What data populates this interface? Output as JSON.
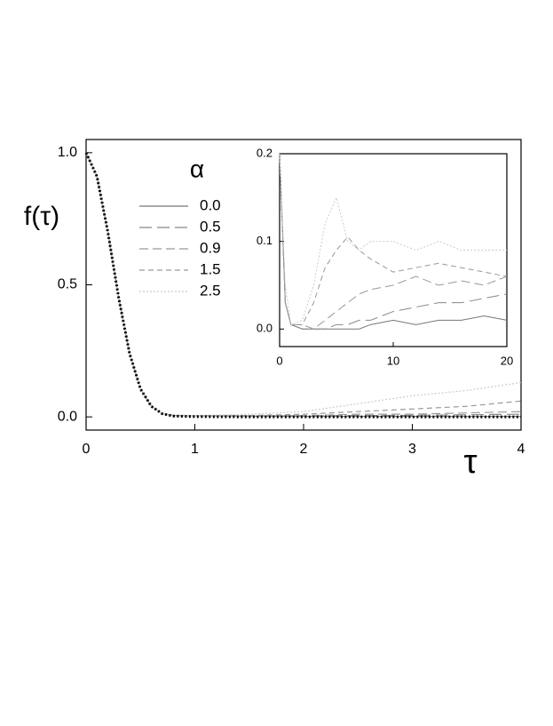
{
  "chart_data": [
    {
      "type": "line",
      "xlabel": "τ",
      "ylabel": "f(τ)",
      "legend_title": "α",
      "x": [
        0,
        0.1,
        0.2,
        0.3,
        0.4,
        0.5,
        0.6,
        0.7,
        0.8,
        1,
        1.5,
        2,
        2.5,
        3,
        3.5,
        4
      ],
      "series": [
        {
          "name": "0.0",
          "color": "#777777",
          "values": [
            1,
            0.91,
            0.7,
            0.45,
            0.24,
            0.106,
            0.04,
            0.012,
            0.005,
            0.004,
            0.003,
            0.002,
            0.002,
            0.002,
            0.002,
            0.002
          ]
        },
        {
          "name": "0.5",
          "color": "#888888",
          "values": [
            1,
            0.91,
            0.7,
            0.45,
            0.24,
            0.106,
            0.04,
            0.012,
            0.005,
            0.004,
            0.004,
            0.004,
            0.005,
            0.006,
            0.008,
            0.01
          ]
        },
        {
          "name": "0.9",
          "color": "#999999",
          "values": [
            1,
            0.91,
            0.7,
            0.45,
            0.24,
            0.106,
            0.04,
            0.012,
            0.005,
            0.004,
            0.004,
            0.005,
            0.01,
            0.01,
            0.015,
            0.02
          ]
        },
        {
          "name": "1.5",
          "color": "#999999",
          "values": [
            1,
            0.91,
            0.7,
            0.45,
            0.24,
            0.106,
            0.04,
            0.012,
            0.006,
            0.005,
            0.005,
            0.01,
            0.02,
            0.03,
            0.04,
            0.06
          ]
        },
        {
          "name": "2.5",
          "color": "#cccccc",
          "values": [
            1,
            0.91,
            0.7,
            0.45,
            0.24,
            0.106,
            0.04,
            0.013,
            0.007,
            0.005,
            0.01,
            0.02,
            0.05,
            0.08,
            0.1,
            0.13
          ]
        },
        {
          "color": "#000000",
          "values": [
            1,
            0.91,
            0.7,
            0.45,
            0.24,
            0.106,
            0.04,
            0.012,
            0.003,
            0.001,
            0,
            0,
            0,
            0,
            0,
            0
          ]
        }
      ],
      "xlim": [
        0,
        4
      ],
      "ylim": [
        -0.05,
        1.05
      ],
      "xticks": [
        0,
        1,
        2,
        3,
        4
      ],
      "yticks": [
        {
          "value": 0,
          "label": "0.0"
        },
        0.5,
        {
          "value": 1,
          "label": "1.0"
        }
      ]
    },
    {
      "type": "line",
      "x": [
        0,
        0.5,
        1,
        2,
        3,
        4,
        5,
        6,
        7,
        8,
        10,
        12,
        14,
        16,
        18,
        20
      ],
      "series": [
        {
          "color": "#777777",
          "values": [
            0.2,
            0.03,
            0.005,
            0,
            0,
            0,
            0,
            0,
            0,
            0.005,
            0.01,
            0.005,
            0.01,
            0.01,
            0.015,
            0.01
          ]
        },
        {
          "color": "#888888",
          "values": [
            0.2,
            0.03,
            0.005,
            0,
            0,
            0,
            0.005,
            0.005,
            0.01,
            0.01,
            0.02,
            0.025,
            0.03,
            0.03,
            0.035,
            0.04
          ]
        },
        {
          "color": "#999999",
          "values": [
            0.2,
            0.03,
            0.005,
            0.005,
            0,
            0.01,
            0.02,
            0.03,
            0.04,
            0.045,
            0.05,
            0.06,
            0.05,
            0.055,
            0.05,
            0.06
          ]
        },
        {
          "color": "#999999",
          "values": [
            0.2,
            0.03,
            0.005,
            0.005,
            0.03,
            0.07,
            0.09,
            0.105,
            0.09,
            0.08,
            0.065,
            0.07,
            0.075,
            0.07,
            0.065,
            0.06
          ]
        },
        {
          "color": "#cccccc",
          "values": [
            0.2,
            0.05,
            0.005,
            0.01,
            0.05,
            0.12,
            0.15,
            0.1,
            0.09,
            0.1,
            0.1,
            0.09,
            0.1,
            0.09,
            0.09,
            0.09
          ]
        }
      ],
      "xlim": [
        0,
        20
      ],
      "ylim": [
        -0.02,
        0.2
      ],
      "xticks": [
        0,
        10,
        20
      ],
      "yticks": [
        {
          "value": 0,
          "label": "0.0"
        },
        {
          "value": 0.1,
          "label": "0.1"
        },
        {
          "value": 0.2,
          "label": "0.2"
        }
      ]
    }
  ]
}
